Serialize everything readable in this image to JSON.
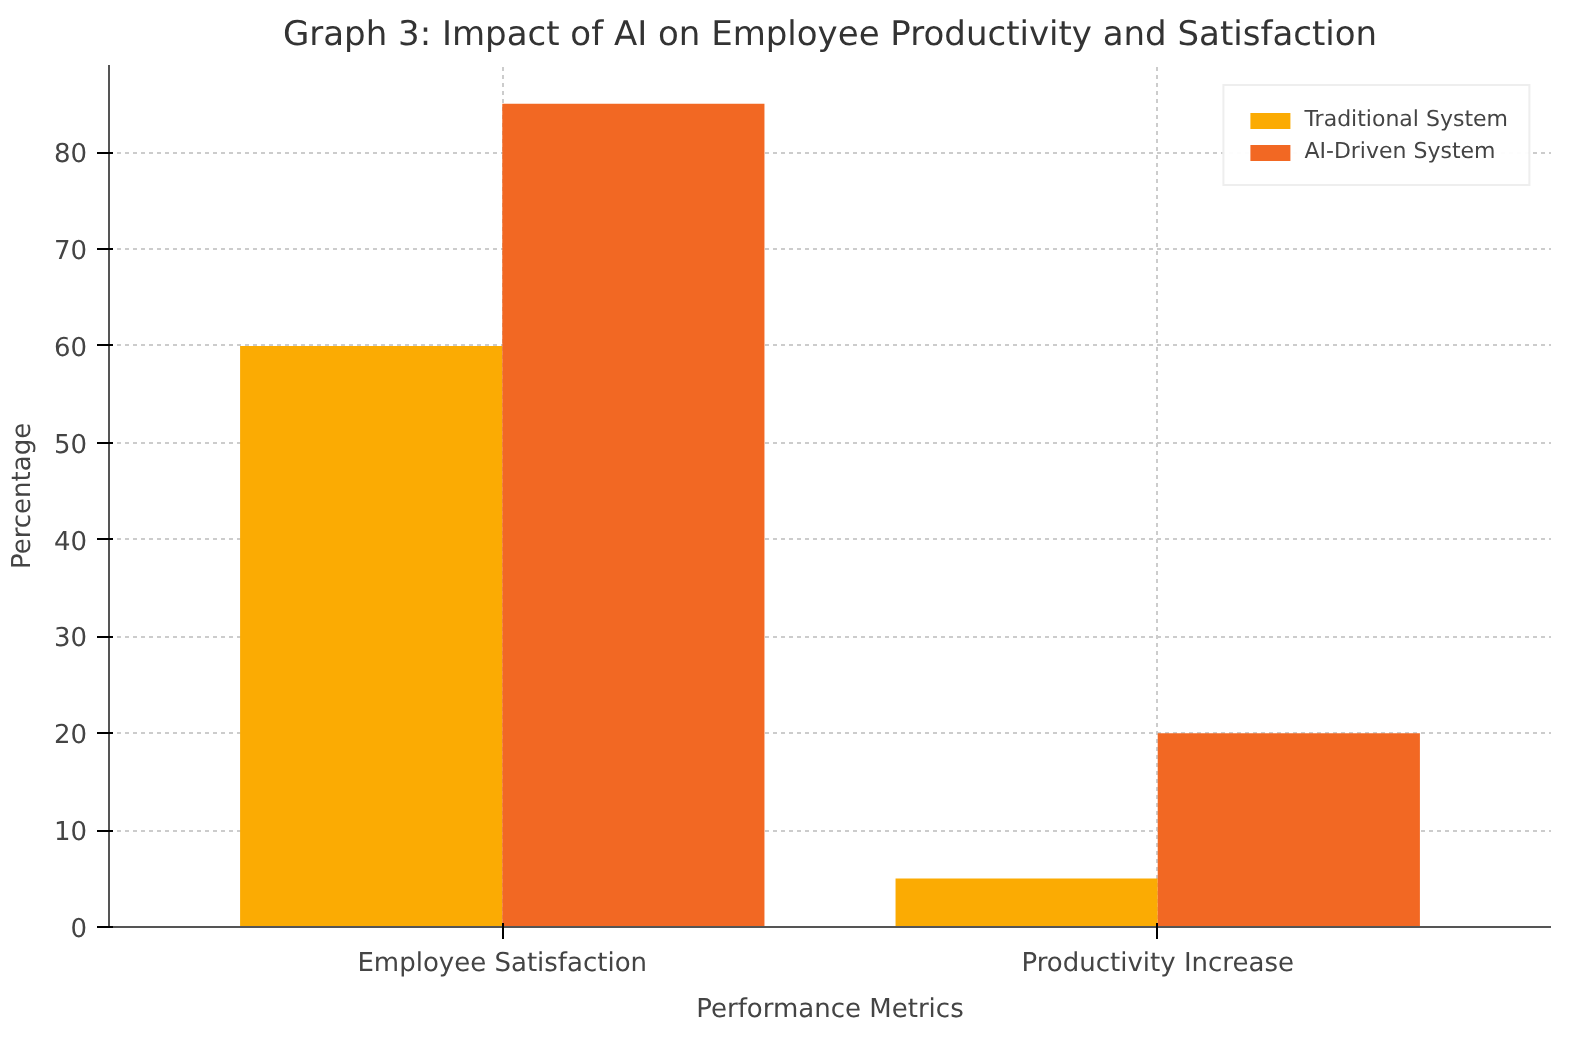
{
  "chart_data": {
    "type": "bar",
    "title": "Graph 3: Impact of AI on Employee Productivity and Satisfaction",
    "xlabel": "Performance Metrics",
    "ylabel": "Percentage",
    "categories": [
      "Employee Satisfaction",
      "Productivity Increase"
    ],
    "series": [
      {
        "name": "Traditional System",
        "color": "#fbab03",
        "values": [
          60,
          5
        ]
      },
      {
        "name": "AI-Driven System",
        "color": "#f26823",
        "values": [
          85,
          20
        ]
      }
    ],
    "ylim": [
      0,
      89
    ],
    "yticks": [
      0,
      10,
      20,
      30,
      40,
      50,
      60,
      70,
      80
    ],
    "grid": true,
    "legend": "top right"
  }
}
